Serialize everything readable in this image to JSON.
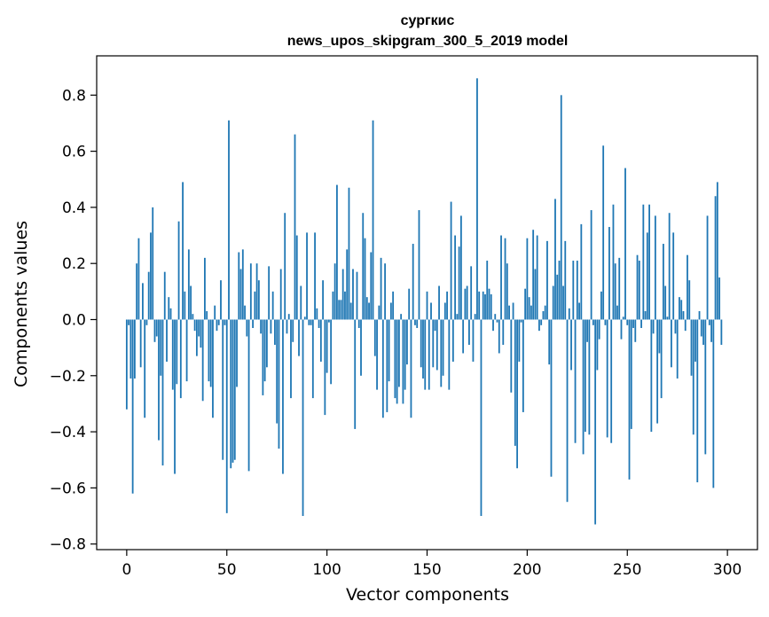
{
  "chart_data": {
    "type": "bar",
    "title": "сургкис",
    "subtitle": "news_upos_skipgram_300_5_2019 model",
    "xlabel": "Vector components",
    "ylabel": "Components values",
    "xlim": [
      -15,
      315
    ],
    "ylim": [
      -0.82,
      0.94
    ],
    "xticks": [
      0,
      50,
      100,
      150,
      200,
      250,
      300
    ],
    "yticks": [
      -0.8,
      -0.6,
      -0.4,
      -0.2,
      0.0,
      0.2,
      0.4,
      0.6,
      0.8
    ],
    "xtick_labels": [
      "0",
      "50",
      "100",
      "150",
      "200",
      "250",
      "300"
    ],
    "ytick_labels": [
      "−0.8",
      "−0.6",
      "−0.4",
      "−0.2",
      "0.0",
      "0.2",
      "0.4",
      "0.6",
      "0.8"
    ],
    "bar_color": "#1f77b4",
    "grid": false,
    "x_start": 0,
    "values": [
      -0.32,
      -0.02,
      -0.21,
      -0.62,
      -0.21,
      0.2,
      0.29,
      -0.17,
      0.13,
      -0.35,
      -0.02,
      0.17,
      0.31,
      0.4,
      -0.08,
      -0.06,
      -0.43,
      -0.2,
      -0.52,
      0.17,
      -0.15,
      0.08,
      0.04,
      -0.25,
      -0.55,
      -0.23,
      0.35,
      -0.28,
      0.49,
      0.1,
      -0.22,
      0.25,
      0.12,
      0.02,
      -0.04,
      -0.13,
      -0.06,
      -0.1,
      -0.29,
      0.22,
      0.03,
      -0.22,
      -0.24,
      -0.35,
      0.05,
      -0.04,
      -0.02,
      0.14,
      -0.5,
      -0.02,
      -0.69,
      0.71,
      -0.53,
      -0.51,
      -0.5,
      -0.24,
      0.24,
      0.18,
      0.25,
      0.05,
      -0.06,
      -0.54,
      0.2,
      -0.03,
      0.1,
      0.2,
      0.14,
      -0.05,
      -0.27,
      -0.22,
      -0.17,
      0.19,
      -0.05,
      0.1,
      -0.09,
      -0.37,
      -0.46,
      0.18,
      -0.55,
      0.38,
      -0.05,
      0.02,
      -0.28,
      -0.08,
      0.66,
      0.3,
      -0.13,
      0.12,
      -0.7,
      0.01,
      0.31,
      -0.02,
      -0.02,
      -0.28,
      0.31,
      0.04,
      -0.03,
      -0.15,
      0.14,
      -0.34,
      -0.19,
      -0.01,
      -0.23,
      0.1,
      0.2,
      0.48,
      0.07,
      0.07,
      0.18,
      0.1,
      0.25,
      0.47,
      0.06,
      0.18,
      -0.39,
      0.17,
      -0.03,
      -0.2,
      0.38,
      0.29,
      0.08,
      0.06,
      0.24,
      0.71,
      -0.13,
      -0.25,
      0.05,
      0.22,
      -0.35,
      0.2,
      -0.33,
      -0.22,
      0.06,
      0.1,
      -0.28,
      -0.3,
      -0.24,
      0.02,
      -0.3,
      -0.25,
      -0.16,
      0.11,
      -0.35,
      0.27,
      -0.02,
      -0.03,
      0.39,
      -0.17,
      -0.21,
      -0.25,
      0.1,
      -0.25,
      0.06,
      -0.17,
      -0.04,
      -0.18,
      0.12,
      -0.24,
      -0.2,
      0.06,
      0.1,
      -0.25,
      0.42,
      -0.15,
      0.3,
      0.02,
      0.26,
      0.37,
      -0.12,
      0.11,
      0.12,
      -0.09,
      0.19,
      -0.15,
      0.02,
      0.86,
      0.1,
      -0.7,
      0.1,
      0.09,
      0.21,
      0.11,
      0.09,
      -0.04,
      0.02,
      -0.01,
      -0.12,
      0.3,
      -0.09,
      0.29,
      0.2,
      0.05,
      -0.26,
      0.06,
      -0.45,
      -0.53,
      -0.15,
      -0.01,
      -0.33,
      0.11,
      0.29,
      0.08,
      0.05,
      0.32,
      0.18,
      0.3,
      -0.04,
      -0.02,
      0.03,
      0.05,
      0.28,
      -0.16,
      -0.56,
      0.12,
      0.43,
      0.16,
      0.21,
      0.8,
      0.12,
      0.28,
      -0.65,
      0.04,
      -0.18,
      0.21,
      -0.44,
      0.21,
      0.06,
      0.34,
      -0.48,
      -0.4,
      -0.08,
      -0.41,
      0.39,
      -0.02,
      -0.73,
      -0.18,
      -0.07,
      0.1,
      0.62,
      -0.02,
      -0.42,
      0.33,
      -0.44,
      0.41,
      0.2,
      0.05,
      0.22,
      -0.07,
      0.01,
      0.54,
      -0.02,
      -0.57,
      -0.39,
      -0.03,
      -0.08,
      0.23,
      0.21,
      -0.03,
      0.41,
      0.03,
      0.31,
      0.41,
      -0.4,
      -0.05,
      0.37,
      -0.37,
      -0.12,
      -0.28,
      0.27,
      0.12,
      0.01,
      0.38,
      -0.17,
      0.31,
      -0.05,
      -0.21,
      0.08,
      0.07,
      0.03,
      -0.04,
      0.23,
      0.14,
      -0.2,
      -0.41,
      -0.15,
      -0.58,
      0.03,
      -0.06,
      -0.09,
      -0.48,
      0.37,
      -0.02,
      -0.08,
      -0.6,
      0.44,
      0.49,
      0.15,
      -0.09
    ]
  }
}
